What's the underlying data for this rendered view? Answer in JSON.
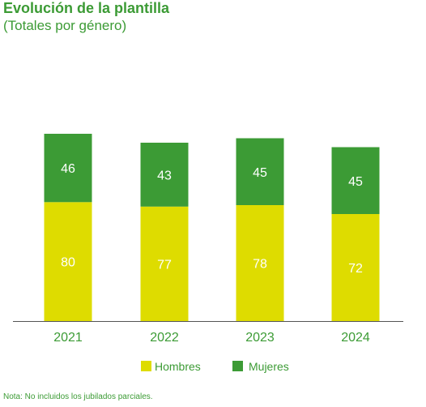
{
  "header": {
    "title": "Evolución de la plantilla",
    "subtitle": "(Totales por género)"
  },
  "footnote": "Nota: No incluidos los jubilados parciales.",
  "colors": {
    "text": "#3c9b35",
    "hombres": "#dedc00",
    "mujeres": "#3c9b35",
    "axis": "#555555"
  },
  "chart_data": {
    "type": "bar",
    "stacked": true,
    "categories": [
      "2021",
      "2022",
      "2023",
      "2024"
    ],
    "series": [
      {
        "name": "Hombres",
        "values": [
          80,
          77,
          78,
          72
        ]
      },
      {
        "name": "Mujeres",
        "values": [
          46,
          43,
          45,
          45
        ]
      }
    ],
    "title": "Evolución de la plantilla",
    "subtitle": "(Totales por género)",
    "xlabel": "",
    "ylabel": "",
    "grid": false,
    "legend_position": "bottom-center"
  }
}
